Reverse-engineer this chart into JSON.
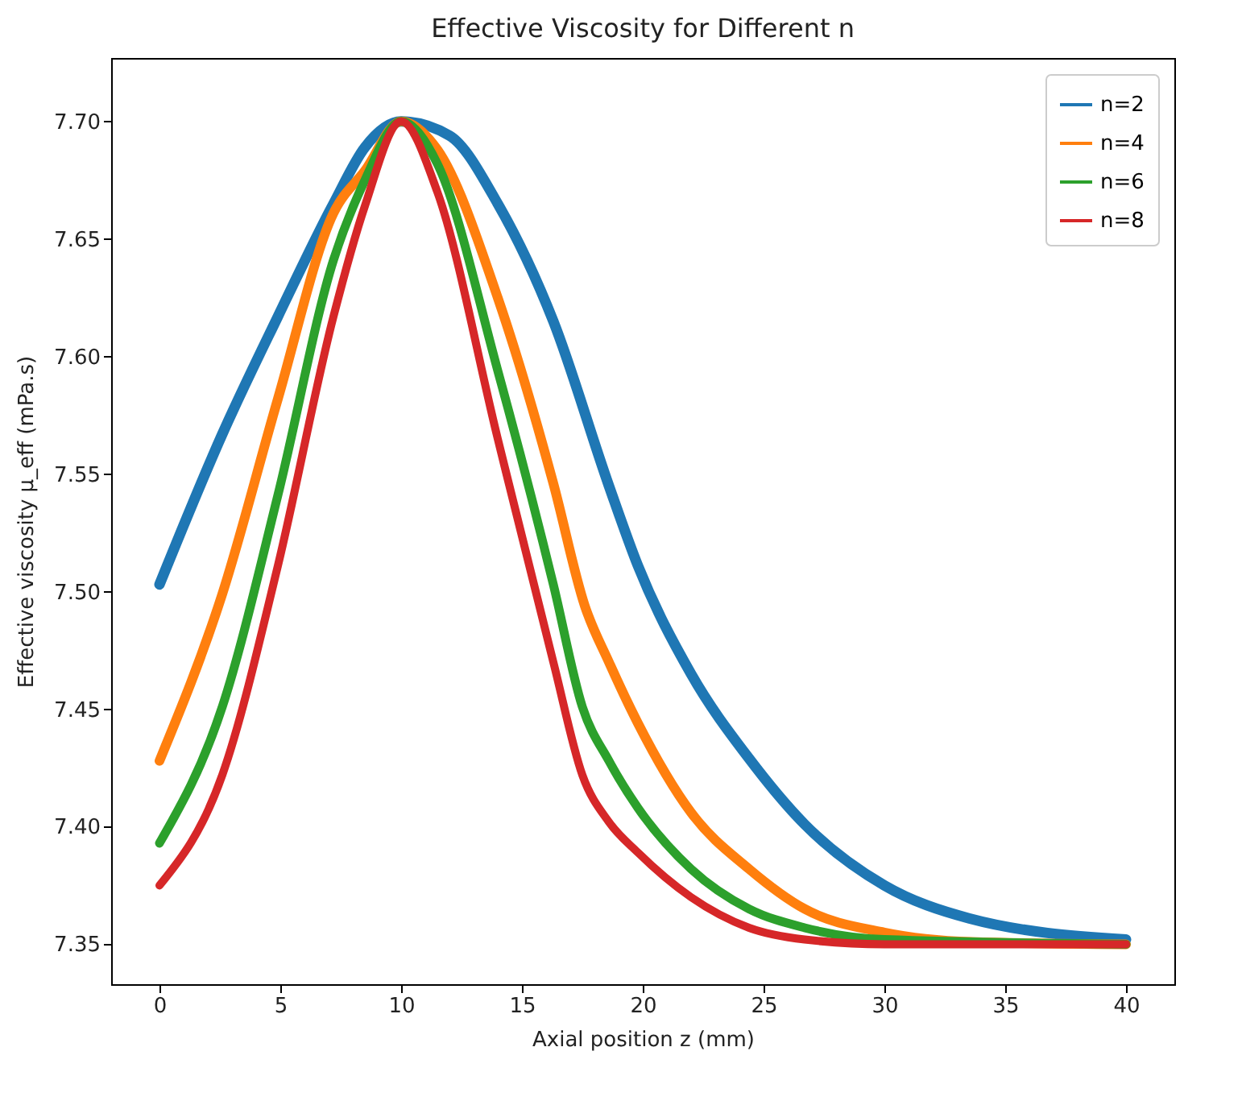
{
  "chart_data": {
    "type": "line",
    "title": "Effective Viscosity for Different n",
    "xlabel": "Axial position z (mm)",
    "ylabel": "Effective viscosity μ_eff (mPa.s)",
    "xlim": [
      -2,
      42
    ],
    "xticks": [
      0,
      5,
      10,
      15,
      20,
      25,
      30,
      35,
      40
    ],
    "ylim": [
      7.333,
      7.727
    ],
    "yticks": [
      {
        "value": 7.35,
        "label": "7.35"
      },
      {
        "value": 7.4,
        "label": "7.40"
      },
      {
        "value": 7.45,
        "label": "7.45"
      },
      {
        "value": 7.5,
        "label": "7.50"
      },
      {
        "value": 7.55,
        "label": "7.55"
      },
      {
        "value": 7.6,
        "label": "7.60"
      },
      {
        "value": 7.65,
        "label": "7.65"
      },
      {
        "value": 7.7,
        "label": "7.70"
      }
    ],
    "grid": false,
    "legend": "top right",
    "marker": "none",
    "line_style": "solid",
    "series": [
      {
        "name": "n=2",
        "color": "#1f77b4",
        "x": [
          0,
          2.6,
          4.9,
          7.2,
          8.5,
          10,
          12,
          14,
          16.3,
          18.6,
          19.8,
          22,
          24.4,
          26.7,
          30,
          33.5,
          40
        ],
        "values": [
          7.503,
          7.567,
          7.617,
          7.665,
          7.689,
          7.7,
          7.694,
          7.665,
          7.615,
          7.545,
          7.511,
          7.465,
          7.429,
          7.401,
          7.375,
          7.361,
          7.352
        ]
      },
      {
        "name": "n=4",
        "color": "#ff7f0e",
        "x": [
          0,
          2.6,
          4.9,
          7.2,
          8.5,
          10,
          11.5,
          14,
          16.3,
          17.6,
          18.6,
          19.8,
          22,
          24.4,
          26.7,
          30,
          33.6,
          40
        ],
        "values": [
          7.428,
          7.499,
          7.582,
          7.661,
          7.679,
          7.7,
          7.688,
          7.625,
          7.546,
          7.494,
          7.47,
          7.444,
          7.406,
          7.382,
          7.365,
          7.355,
          7.351,
          7.35
        ]
      },
      {
        "name": "n=6",
        "color": "#2ca02c",
        "x": [
          0,
          2.6,
          4.9,
          7.2,
          8.5,
          10,
          11.5,
          14,
          16.3,
          17.5,
          18.6,
          19.8,
          22,
          24.4,
          26.7,
          30,
          40
        ],
        "values": [
          7.393,
          7.451,
          7.541,
          7.641,
          7.675,
          7.7,
          7.682,
          7.594,
          7.503,
          7.451,
          7.428,
          7.408,
          7.382,
          7.365,
          7.357,
          7.352,
          7.35
        ]
      },
      {
        "name": "n=8",
        "color": "#d62728",
        "x": [
          0,
          2.6,
          4.9,
          7.2,
          8.5,
          10,
          11.5,
          14,
          16.3,
          17.5,
          18.6,
          19.8,
          22,
          24.4,
          26.7,
          30,
          40
        ],
        "values": [
          7.375,
          7.422,
          7.511,
          7.617,
          7.664,
          7.7,
          7.67,
          7.565,
          7.47,
          7.422,
          7.402,
          7.389,
          7.37,
          7.357,
          7.352,
          7.35,
          7.35
        ]
      }
    ]
  }
}
